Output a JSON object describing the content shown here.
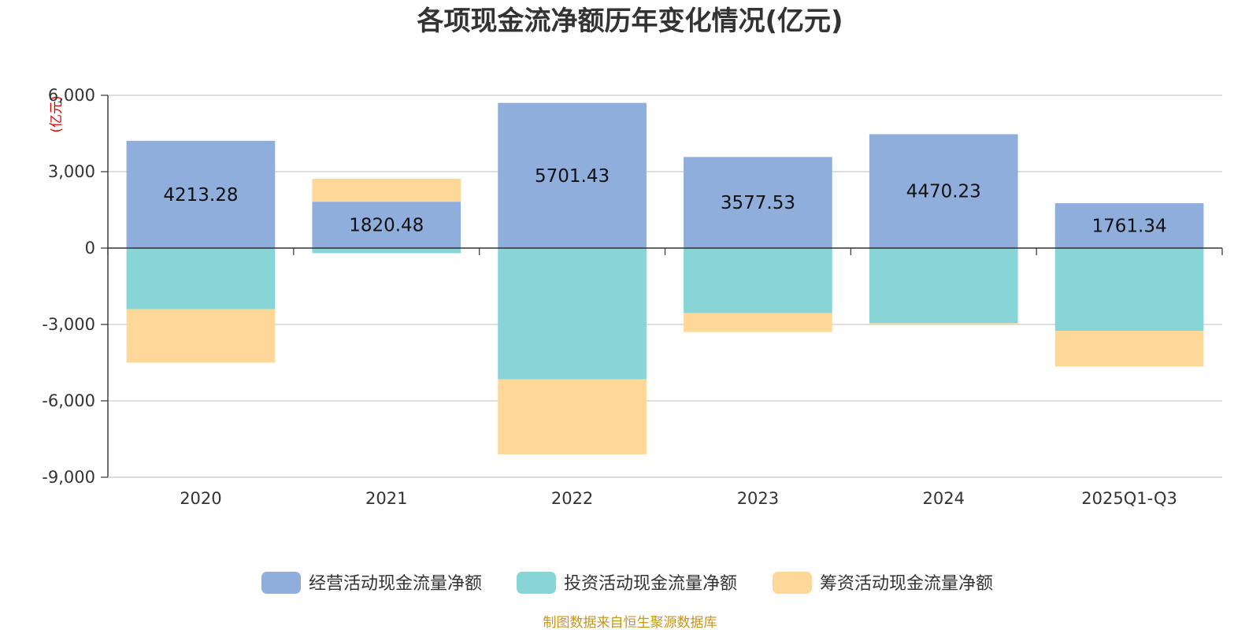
{
  "chart_data": {
    "type": "bar",
    "stacked": true,
    "title": "各项现金流净额历年变化情况(亿元)",
    "ylabel": "(亿元)",
    "categories": [
      "2020",
      "2021",
      "2022",
      "2023",
      "2024",
      "2025Q1-Q3"
    ],
    "ylim": [
      -9000,
      6000
    ],
    "yticks": [
      6000,
      3000,
      0,
      -3000,
      -6000,
      -9000
    ],
    "ytick_labels": [
      "6,000",
      "3,000",
      "0",
      "-3,000",
      "-6,000",
      "-9,000"
    ],
    "grid": true,
    "legend_position": "bottom-center",
    "series": [
      {
        "name": "经营活动现金流量净额",
        "color": "#8faedc",
        "values": [
          4213.28,
          1820.48,
          5701.43,
          3577.53,
          4470.23,
          1761.34
        ],
        "labels": [
          "4213.28",
          "1820.48",
          "5701.43",
          "3577.53",
          "4470.23",
          "1761.34"
        ]
      },
      {
        "name": "投资活动现金流量净额",
        "color": "#88d5d8",
        "values": [
          -2400,
          -200,
          -5150,
          -2550,
          -2950,
          -3250
        ]
      },
      {
        "name": "筹资活动现金流量净额",
        "color": "#fdd899",
        "values": [
          -2100,
          900,
          -2950,
          -750,
          -50,
          -1400
        ]
      }
    ],
    "source": "制图数据来自恒生聚源数据库"
  }
}
